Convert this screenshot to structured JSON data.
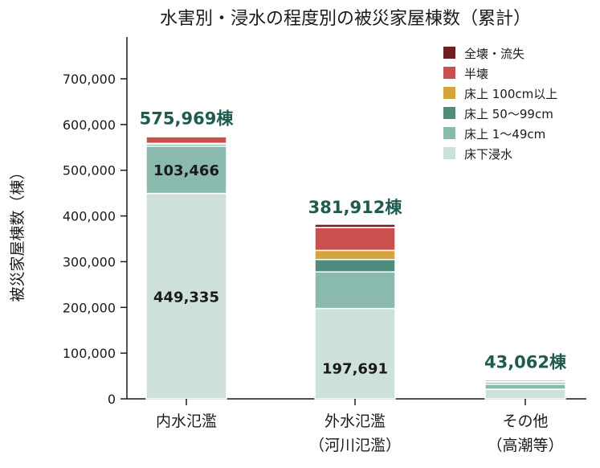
{
  "chart_data": {
    "type": "bar",
    "stacked": true,
    "title": "水害別・浸水の程度別の被災家屋棟数（累計）",
    "ylabel": "被災家屋棟数（棟）",
    "xlabel": "",
    "ylim": [
      0,
      700000
    ],
    "yticks": [
      "0",
      "100,000",
      "200,000",
      "300,000",
      "400,000",
      "500,000",
      "600,000",
      "700,000"
    ],
    "ytick_values": [
      0,
      100000,
      200000,
      300000,
      400000,
      500000,
      600000,
      700000
    ],
    "grid": false,
    "legend_position": "top-right",
    "categories": [
      {
        "line1": "内水氾濫",
        "line2": ""
      },
      {
        "line1": "外水氾濫",
        "line2": "（河川氾濫）"
      },
      {
        "line1": "その他",
        "line2": "（高潮等）"
      }
    ],
    "totals": [
      575969,
      381912,
      43062
    ],
    "total_labels": [
      "575,969棟",
      "381,912棟",
      "43,062棟"
    ],
    "series": [
      {
        "name": "床下浸水",
        "color": "#cde0da",
        "values": [
          449335,
          197691,
          21000
        ]
      },
      {
        "name": "床上 1〜49cm",
        "color": "#8ab9ad",
        "values": [
          103466,
          80000,
          11000
        ]
      },
      {
        "name": "床上 50〜99cm",
        "color": "#4e8c7d",
        "values": [
          4000,
          27000,
          4000
        ]
      },
      {
        "name": "床上 100cm以上",
        "color": "#d4a53b",
        "values": [
          2000,
          20000,
          2500
        ]
      },
      {
        "name": "半壊",
        "color": "#c9504d",
        "values": [
          14668,
          50221,
          3562
        ]
      },
      {
        "name": "全壊・流失",
        "color": "#6e1f1f",
        "values": [
          2500,
          7000,
          1000
        ]
      }
    ],
    "segment_labels": [
      {
        "category": 0,
        "series": 0,
        "text": "449,335"
      },
      {
        "category": 0,
        "series": 1,
        "text": "103,466"
      },
      {
        "category": 1,
        "series": 0,
        "text": "197,691"
      }
    ],
    "legend_order": [
      "全壊・流失",
      "半壊",
      "床上 100cm以上",
      "床上 50〜99cm",
      "床上 1〜49cm",
      "床下浸水"
    ]
  }
}
